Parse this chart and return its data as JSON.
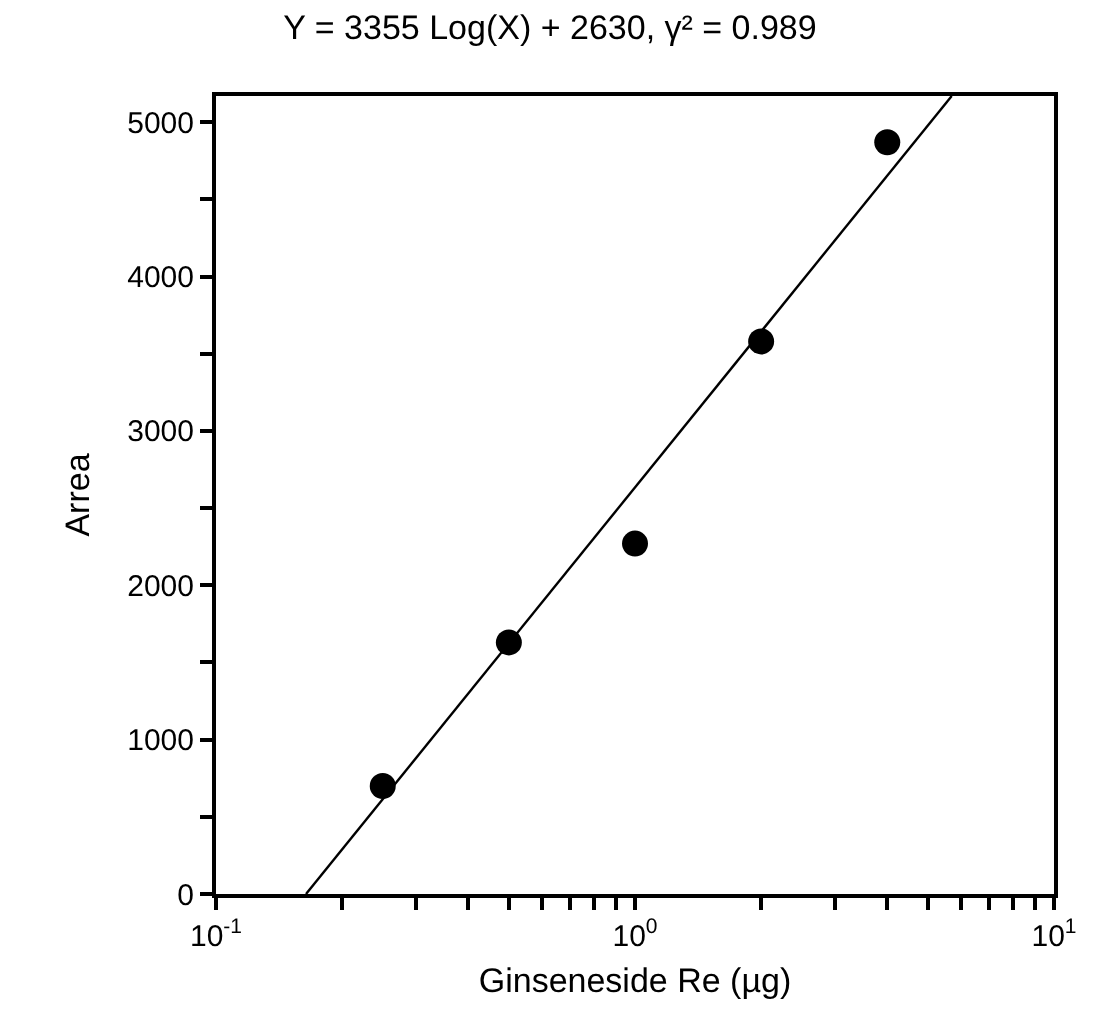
{
  "chart_data": {
    "type": "scatter",
    "title": "Y = 3355 Log(X) + 2630, γ² = 0.989",
    "xlabel": "Ginseneside Re (µg)",
    "ylabel": "Arrea",
    "x": [
      0.25,
      0.5,
      1,
      2,
      4
    ],
    "series": [
      {
        "color": "#000000",
        "marker": "circle",
        "values": [
          700,
          1630,
          2270,
          3580,
          4870
        ]
      },
      {
        "type": "line",
        "color": "#000000",
        "marker": "none",
        "line_style": "solid",
        "x": [
          0.164,
          5.7
        ],
        "values": [
          0,
          5170
        ]
      }
    ],
    "log": "x",
    "xlim": [
      0.1,
      10
    ],
    "ylim": [
      0,
      5170
    ],
    "xticks": [
      {
        "value": 0.1,
        "label": "10$^{-1}$"
      },
      {
        "value": 0.2,
        "label": null
      },
      {
        "value": 0.3,
        "label": null
      },
      {
        "value": 0.4,
        "label": null
      },
      {
        "value": 0.5,
        "label": null
      },
      {
        "value": 0.6,
        "label": null
      },
      {
        "value": 0.7,
        "label": null
      },
      {
        "value": 0.8,
        "label": null
      },
      {
        "value": 0.9,
        "label": null
      },
      {
        "value": 1,
        "label": "10$^{0}$"
      },
      {
        "value": 2,
        "label": null
      },
      {
        "value": 3,
        "label": null
      },
      {
        "value": 4,
        "label": null
      },
      {
        "value": 5,
        "label": null
      },
      {
        "value": 6,
        "label": null
      },
      {
        "value": 7,
        "label": null
      },
      {
        "value": 8,
        "label": null
      },
      {
        "value": 9,
        "label": null
      },
      {
        "value": 10,
        "label": "10$^{1}$"
      }
    ],
    "yticks": [
      0,
      {
        "value": 500,
        "label": null
      },
      1000,
      {
        "value": 1500,
        "label": null
      },
      2000,
      {
        "value": 2500,
        "label": null
      },
      3000,
      {
        "value": 3500,
        "label": null
      },
      4000,
      {
        "value": 4500,
        "label": null
      },
      5000
    ]
  }
}
